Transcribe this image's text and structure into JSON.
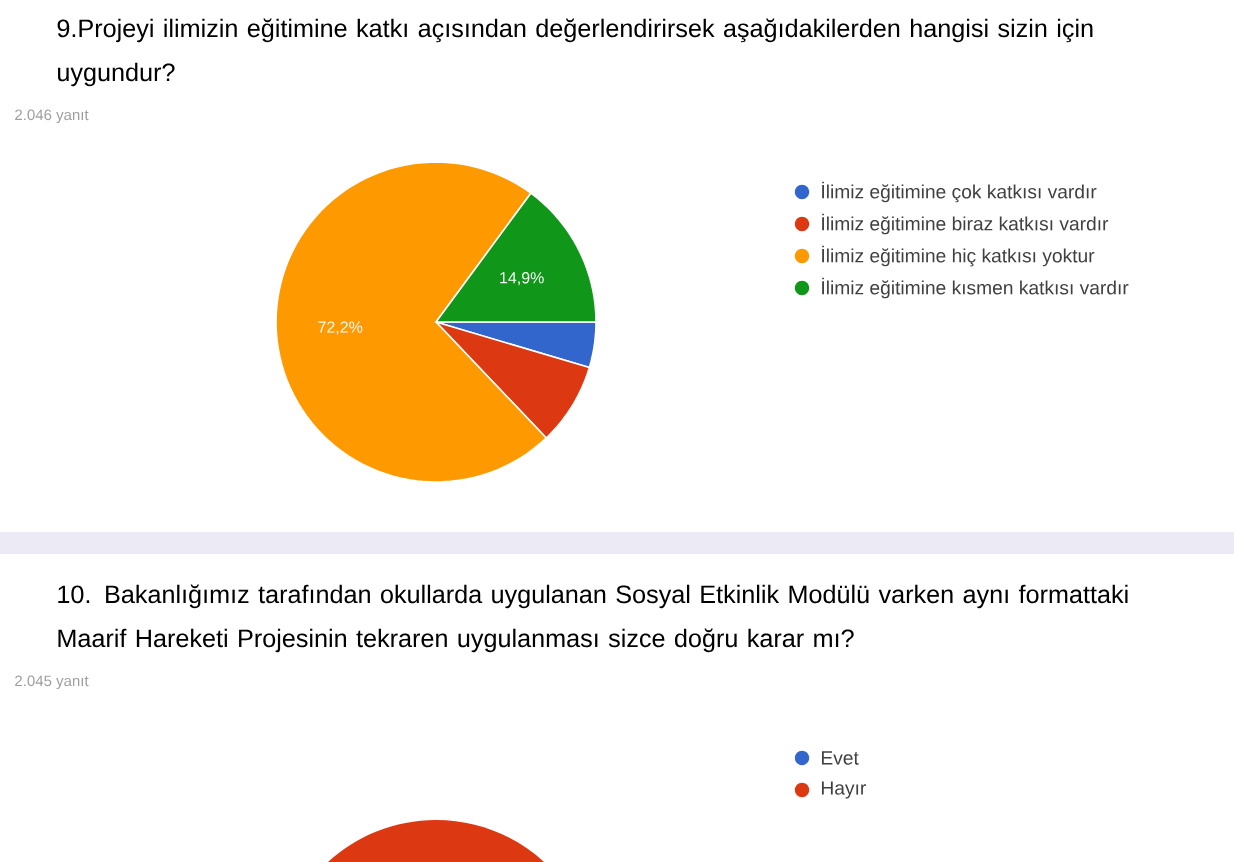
{
  "chart_data": [
    {
      "type": "pie",
      "title": "9.Projeyi ilimizin eğitimine katkı açısından değerlendirirsek aşağıdakilerden hangisi sizin için uygundur?",
      "subtitle": "2.046 yanıt",
      "categories": [
        "İlimiz eğitimine çok katkısı vardır",
        "İlimiz eğitimine biraz katkısı vardır",
        "İlimiz eğitimine hiç katkısı yoktur",
        "İlimiz eğitimine kısmen katkısı vardır"
      ],
      "values": [
        4.6,
        8.3,
        72.2,
        14.9
      ],
      "value_labels": [
        null,
        null,
        "72,2%",
        "14,9%"
      ],
      "colors": [
        "#3366cc",
        "#dc3912",
        "#ff9900",
        "#109618"
      ],
      "legend": "right"
    },
    {
      "type": "other",
      "title": "10. Bakanlığımız tarafından okullarda uygulanan Sosyal Etkinlik Modülü varken aynı formattaki Maarif Hareketi Projesinin tekraren uygulanması sizce doğru karar mı?",
      "subtitle": "2.045 yanıt",
      "categories": [
        "Evet",
        "Hayır"
      ],
      "colors": [
        "#3366cc",
        "#dc3912"
      ]
    }
  ]
}
